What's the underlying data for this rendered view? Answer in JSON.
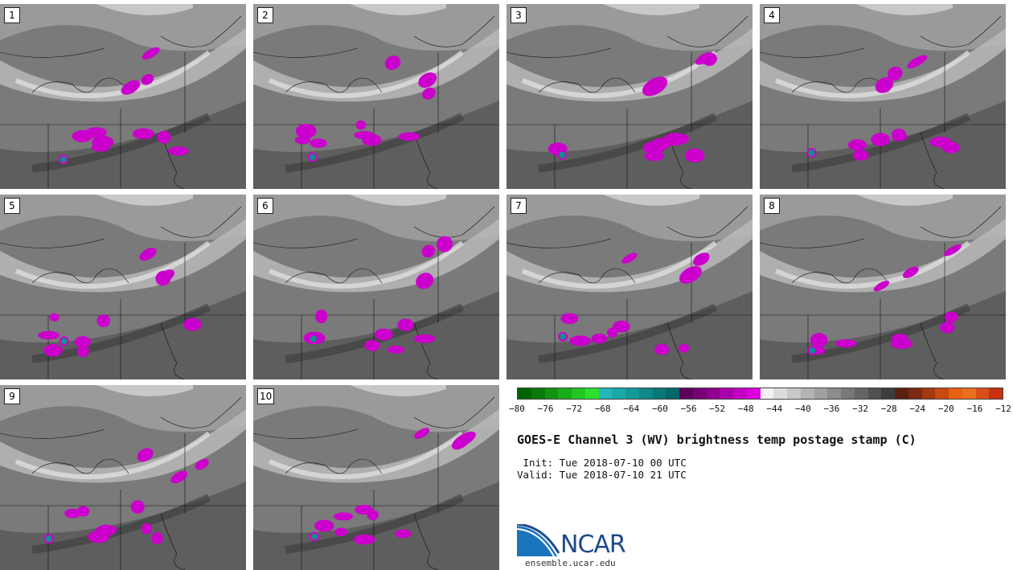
{
  "panels": [
    {
      "label": "1"
    },
    {
      "label": "2"
    },
    {
      "label": "3"
    },
    {
      "label": "4"
    },
    {
      "label": "5"
    },
    {
      "label": "6"
    },
    {
      "label": "7"
    },
    {
      "label": "8"
    },
    {
      "label": "9"
    },
    {
      "label": "10"
    }
  ],
  "colorbar": {
    "colors": [
      "#006400",
      "#0a7a0a",
      "#129312",
      "#1aac1a",
      "#22c522",
      "#2ee02e",
      "#22b8b8",
      "#1aa8a8",
      "#149898",
      "#0e8888",
      "#087878",
      "#036868",
      "#5c005c",
      "#760076",
      "#900090",
      "#aa00aa",
      "#c400c4",
      "#de00de",
      "#f2f2f2",
      "#dcdcdc",
      "#c8c8c8",
      "#b4b4b4",
      "#a0a0a0",
      "#8c8c8c",
      "#787878",
      "#646464",
      "#505050",
      "#3c3c3c",
      "#5a2010",
      "#7a2a10",
      "#a03810",
      "#c84a10",
      "#e86010",
      "#e87020",
      "#d85018",
      "#c83010"
    ],
    "ticks": [
      "−80",
      "−76",
      "−72",
      "−68",
      "−64",
      "−60",
      "−56",
      "−52",
      "−48",
      "−44",
      "−40",
      "−36",
      "−32",
      "−28",
      "−24",
      "−20",
      "−16",
      "−12"
    ]
  },
  "title": "GOES-E Channel 3 (WV) brightness temp postage stamp (C)",
  "init": " Init: Tue 2018-07-10 00 UTC",
  "valid": "Valid: Tue 2018-07-10 21 UTC",
  "logo": {
    "text": "NCAR",
    "site": "ensemble.ucar.edu"
  }
}
